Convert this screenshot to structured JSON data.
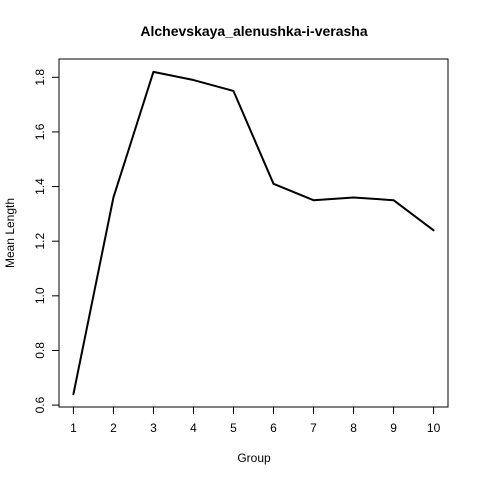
{
  "chart_data": {
    "type": "line",
    "title": "Alchevskaya_alenushka-i-verasha",
    "xlabel": "Group",
    "ylabel": "Mean Length",
    "x": [
      1,
      2,
      3,
      4,
      5,
      6,
      7,
      8,
      9,
      10
    ],
    "series": [
      {
        "values": [
          0.64,
          1.36,
          1.82,
          1.79,
          1.75,
          1.41,
          1.35,
          1.36,
          1.35,
          1.24
        ]
      }
    ],
    "xlim": [
      0.64,
      10.36
    ],
    "ylim": [
      0.593,
      1.867
    ],
    "x_ticks": [
      1,
      2,
      3,
      4,
      5,
      6,
      7,
      8,
      9,
      10
    ],
    "y_ticks": [
      0.6,
      0.8,
      1.0,
      1.2,
      1.4,
      1.6,
      1.8
    ],
    "y_tick_labels": [
      "0.6",
      "0.8",
      "1.0",
      "1.2",
      "1.4",
      "1.6",
      "1.8"
    ],
    "grid": false,
    "line_color": "#000000"
  }
}
